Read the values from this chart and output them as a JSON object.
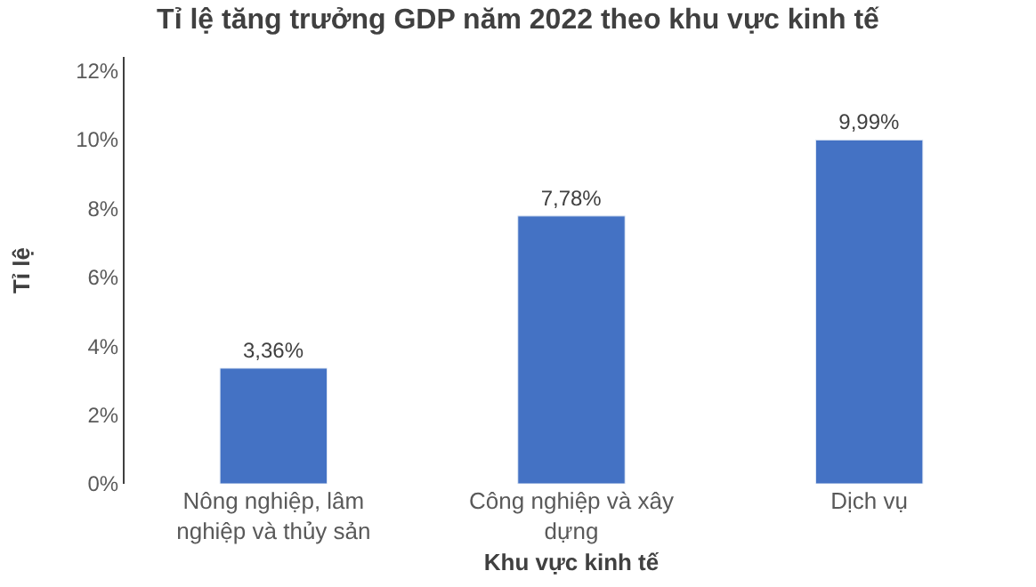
{
  "chart_data": {
    "type": "bar",
    "title": "Tỉ lệ tăng trưởng GDP năm 2022 theo khu vực kinh tế",
    "xlabel": "Khu vực kinh tế",
    "ylabel": "Tỉ lệ",
    "categories": [
      "Nông nghiệp, lâm nghiệp và thủy sản",
      "Công nghiệp và xây dựng",
      "Dịch vụ"
    ],
    "values": [
      3.36,
      7.78,
      9.99
    ],
    "color": "#4472c4",
    "value_labels": [
      "3,36%",
      "7,78%",
      "9,99%"
    ],
    "ylim": [
      0,
      12.4
    ],
    "yticks": [
      {
        "value": 0,
        "label": "0%"
      },
      {
        "value": 2,
        "label": "2%"
      },
      {
        "value": 4,
        "label": "4%"
      },
      {
        "value": 6,
        "label": "6%"
      },
      {
        "value": 8,
        "label": "8%"
      },
      {
        "value": 10,
        "label": "10%"
      },
      {
        "value": 12,
        "label": "12%"
      }
    ],
    "grid": false
  }
}
